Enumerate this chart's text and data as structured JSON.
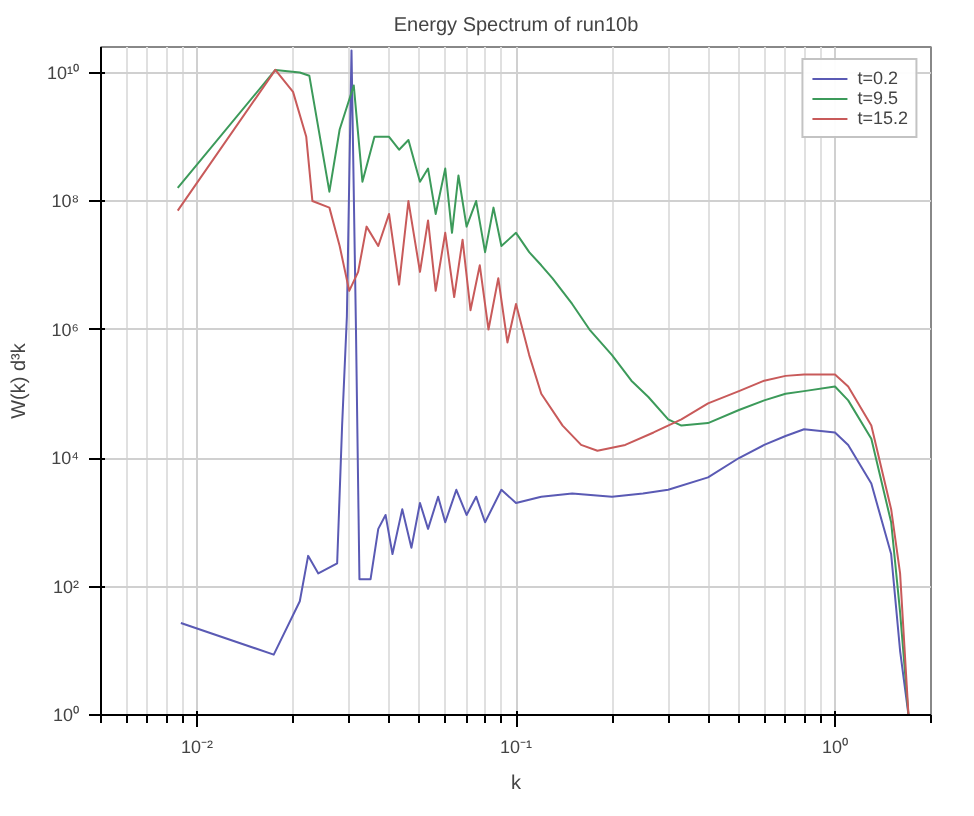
{
  "chart_data": {
    "type": "line",
    "title": "Energy Spectrum of run10b",
    "xlabel": "k",
    "ylabel": "W(k) d³k",
    "log": "xy",
    "grid": true,
    "legend": "top right",
    "xlim": [
      0.005,
      2
    ],
    "ylim": [
      1,
      25000000000.0
    ],
    "xticks": [
      {
        "value": 0.01,
        "label": "10⁻²"
      },
      {
        "value": 0.1,
        "label": "10⁻¹"
      },
      {
        "value": 1,
        "label": "10⁰"
      }
    ],
    "yticks": [
      {
        "value": 1,
        "label": "10⁰"
      },
      {
        "value": 100,
        "label": "10²"
      },
      {
        "value": 10000,
        "label": "10⁴"
      },
      {
        "value": 1000000,
        "label": "10⁶"
      },
      {
        "value": 100000000,
        "label": "10⁸"
      },
      {
        "value": 10000000000,
        "label": "10¹⁰"
      }
    ],
    "series": [
      {
        "name": "t=0.2",
        "color": "#5a5ab4",
        "x": [
          0.0089,
          0.0174,
          0.021,
          0.0223,
          0.024,
          0.0275,
          0.0285,
          0.0295,
          0.0305,
          0.0315,
          0.0323,
          0.035,
          0.037,
          0.039,
          0.041,
          0.044,
          0.047,
          0.05,
          0.053,
          0.057,
          0.06,
          0.065,
          0.07,
          0.075,
          0.08,
          0.09,
          0.1,
          0.12,
          0.15,
          0.2,
          0.25,
          0.3,
          0.4,
          0.5,
          0.6,
          0.7,
          0.8,
          1.0,
          1.1,
          1.3,
          1.5,
          1.6,
          1.7
        ],
        "values": [
          27,
          8.7,
          59,
          300,
          160,
          230,
          32000.0,
          1600000.0,
          22000000000.0,
          1000000.0,
          130,
          130,
          790,
          1300.0,
          320,
          1600.0,
          400,
          2000.0,
          790,
          2500.0,
          1000.0,
          3200.0,
          1300.0,
          2500.0,
          1000.0,
          3200.0,
          2000.0,
          2500.0,
          2800.0,
          2500.0,
          2800.0,
          3200.0,
          5000.0,
          10000.0,
          16000.0,
          22000.0,
          28000.0,
          25000.0,
          16000.0,
          4000.0,
          320,
          10,
          1
        ]
      },
      {
        "name": "t=9.5",
        "color": "#3c9a5a",
        "x": [
          0.0087,
          0.0176,
          0.021,
          0.0225,
          0.026,
          0.028,
          0.031,
          0.033,
          0.036,
          0.04,
          0.043,
          0.046,
          0.05,
          0.053,
          0.056,
          0.06,
          0.063,
          0.066,
          0.07,
          0.075,
          0.08,
          0.085,
          0.09,
          0.1,
          0.11,
          0.12,
          0.13,
          0.15,
          0.17,
          0.2,
          0.23,
          0.26,
          0.3,
          0.33,
          0.4,
          0.5,
          0.6,
          0.7,
          0.8,
          1.0,
          1.1,
          1.3,
          1.5,
          1.6,
          1.7
        ],
        "values": [
          160000000.0,
          11000000000.0,
          10000000000.0,
          8900000000.0,
          140000000.0,
          1300000000.0,
          6300000000.0,
          200000000.0,
          1000000000.0,
          1000000000.0,
          630000000.0,
          890000000.0,
          200000000.0,
          320000000.0,
          63000000.0,
          320000000.0,
          32000000.0,
          250000000.0,
          40000000.0,
          100000000.0,
          16000000.0,
          79000000.0,
          20000000.0,
          32000000.0,
          16000000.0,
          10000000.0,
          6300000.0,
          2500000.0,
          1000000.0,
          400000.0,
          160000.0,
          89000.0,
          40000.0,
          32000.0,
          35000.0,
          56000.0,
          79000.0,
          100000.0,
          110000.0,
          130000.0,
          79000.0,
          20000.0,
          1000.0,
          40,
          1
        ]
      },
      {
        "name": "t=15.2",
        "color": "#c85a5a",
        "x": [
          0.0087,
          0.0176,
          0.02,
          0.022,
          0.023,
          0.026,
          0.028,
          0.03,
          0.032,
          0.034,
          0.037,
          0.04,
          0.043,
          0.046,
          0.05,
          0.053,
          0.056,
          0.06,
          0.064,
          0.068,
          0.072,
          0.077,
          0.082,
          0.088,
          0.094,
          0.1,
          0.11,
          0.12,
          0.14,
          0.16,
          0.18,
          0.22,
          0.27,
          0.33,
          0.4,
          0.5,
          0.6,
          0.7,
          0.8,
          1.0,
          1.1,
          1.3,
          1.5,
          1.6,
          1.7
        ],
        "values": [
          71000000.0,
          11000000000.0,
          5000000000.0,
          1000000000.0,
          100000000.0,
          79000000.0,
          20000000.0,
          4000000.0,
          7900000.0,
          40000000.0,
          20000000.0,
          63000000.0,
          5000000.0,
          100000000.0,
          7900000.0,
          50000000.0,
          4000000.0,
          32000000.0,
          3200000.0,
          25000000.0,
          2000000.0,
          10000000.0,
          1000000.0,
          6300000.0,
          630000.0,
          2500000.0,
          400000.0,
          100000.0,
          32000.0,
          16000.0,
          13000.0,
          16000.0,
          25000.0,
          40000.0,
          71000.0,
          110000.0,
          160000.0,
          190000.0,
          200000.0,
          200000.0,
          130000.0,
          32000.0,
          1600.0,
          160,
          1
        ]
      }
    ]
  }
}
